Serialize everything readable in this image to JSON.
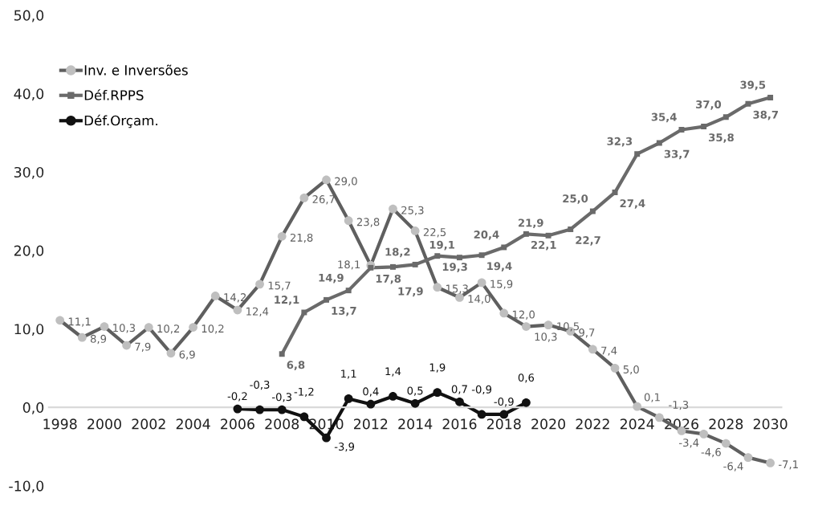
{
  "chart_data": {
    "type": "line",
    "x": [
      1998,
      1999,
      2000,
      2001,
      2002,
      2003,
      2004,
      2005,
      2006,
      2007,
      2008,
      2009,
      2010,
      2011,
      2012,
      2013,
      2014,
      2015,
      2016,
      2017,
      2018,
      2019,
      2020,
      2021,
      2022,
      2023,
      2024,
      2025,
      2026,
      2027,
      2028,
      2029,
      2030
    ],
    "series": [
      {
        "name": "Inv. e Inversões",
        "color": "#5f5f5f",
        "marker": "circle",
        "colors": [
          "#bfbfbf",
          "#bfbfbf",
          "#bfbfbf",
          "#bfbfbf",
          "#bfbfbf",
          "#bfbfbf",
          "#bfbfbf",
          "#bfbfbf",
          "#bfbfbf",
          "#bfbfbf",
          "#bfbfbf",
          "#bfbfbf",
          "#bfbfbf",
          "#bfbfbf",
          "#bfbfbf",
          "#bfbfbf",
          "#bfbfbf",
          "#bfbfbf",
          "#bfbfbf",
          "#bfbfbf",
          "#bfbfbf",
          "#bfbfbf",
          "#bfbfbf",
          "#bfbfbf",
          "#bfbfbf",
          "#bfbfbf",
          "#bfbfbf",
          "#bfbfbf",
          "#bfbfbf",
          "#bfbfbf",
          "#bfbfbf",
          "#bfbfbf",
          "#bfbfbf"
        ],
        "values": [
          11.1,
          8.9,
          10.3,
          7.9,
          10.2,
          6.9,
          10.2,
          14.2,
          12.4,
          15.7,
          21.8,
          26.7,
          29.0,
          23.8,
          18.1,
          25.3,
          22.5,
          15.3,
          14.0,
          15.9,
          12.0,
          10.3,
          10.5,
          9.7,
          7.4,
          5.0,
          0.1,
          -1.3,
          -3.0,
          -3.4,
          -4.6,
          -6.4,
          -7.1
        ],
        "value_labels": [
          "11,1",
          "8,9",
          "10,3",
          "7,9",
          "10,2",
          "6,9",
          "10,2",
          "14,2",
          "12,4",
          "15,7",
          "21,8",
          "26,7",
          "29,0",
          "23,8",
          "18,1",
          "25,3",
          "22,5",
          "15,3",
          "14,0",
          "15,9",
          "12,0",
          "10,3",
          "10,5",
          "9,7",
          "7,4",
          "5,0",
          "0,1",
          "-1,3",
          null,
          "-3,4",
          "-4,6",
          "-6,4",
          "-7,1"
        ]
      },
      {
        "name": "Déf.RPPS",
        "color": "#6a6a6a",
        "marker": "square",
        "values": [
          null,
          null,
          null,
          null,
          null,
          null,
          null,
          null,
          null,
          null,
          6.8,
          12.1,
          13.7,
          14.9,
          17.8,
          17.9,
          18.2,
          19.3,
          19.1,
          19.4,
          20.4,
          22.1,
          21.9,
          22.7,
          25.0,
          27.4,
          32.3,
          33.7,
          35.4,
          35.8,
          37.0,
          38.7,
          39.5
        ],
        "value_labels": [
          null,
          null,
          null,
          null,
          null,
          null,
          null,
          null,
          null,
          null,
          "6,8",
          "12,1",
          "13,7",
          "14,9",
          "17,8",
          "17,9",
          "18,2",
          "19,3",
          "19,1",
          "19,4",
          "20,4",
          "22,1",
          "21,9",
          "22,7",
          "25,0",
          "27,4",
          "32,3",
          "33,7",
          "35,4",
          "35,8",
          "37,0",
          "38,7",
          "39,5"
        ]
      },
      {
        "name": "Déf.Orçam.",
        "color": "#111111",
        "marker": "circle",
        "values": [
          null,
          null,
          null,
          null,
          null,
          null,
          null,
          null,
          -0.2,
          -0.3,
          -0.3,
          -1.2,
          -3.9,
          1.1,
          0.4,
          1.4,
          0.5,
          1.9,
          0.7,
          -0.9,
          -0.9,
          0.6,
          null,
          null,
          null,
          null,
          null,
          null,
          null,
          null,
          null,
          null,
          null
        ],
        "value_labels": [
          null,
          null,
          null,
          null,
          null,
          null,
          null,
          null,
          "-0,2",
          "-0,3",
          "-0,3",
          "-1,2",
          "-3,9",
          "1,1",
          "0,4",
          "1,4",
          "0,5",
          "1,9",
          "0,7",
          "-0,9",
          "-0,9",
          "0,6",
          null,
          null,
          null,
          null,
          null,
          null,
          null,
          null,
          null,
          null,
          null
        ]
      }
    ],
    "xlim": [
      1997.5,
      2030.5
    ],
    "xticks": [
      1998,
      2000,
      2002,
      2004,
      2006,
      2008,
      2010,
      2012,
      2014,
      2016,
      2018,
      2020,
      2022,
      2024,
      2026,
      2028,
      2030
    ],
    "ylim": [
      -10,
      50
    ],
    "yticks": [
      {
        "value": -10,
        "label": "-10,0"
      },
      {
        "value": 0,
        "label": "0,0"
      },
      {
        "value": 10,
        "label": "10,0"
      },
      {
        "value": 20,
        "label": "20,0"
      },
      {
        "value": 30,
        "label": "30,0"
      },
      {
        "value": 40,
        "label": "40,0"
      },
      {
        "value": 50,
        "label": "50,0"
      }
    ],
    "grid": false,
    "legend": "top left",
    "line_style": "solid"
  }
}
